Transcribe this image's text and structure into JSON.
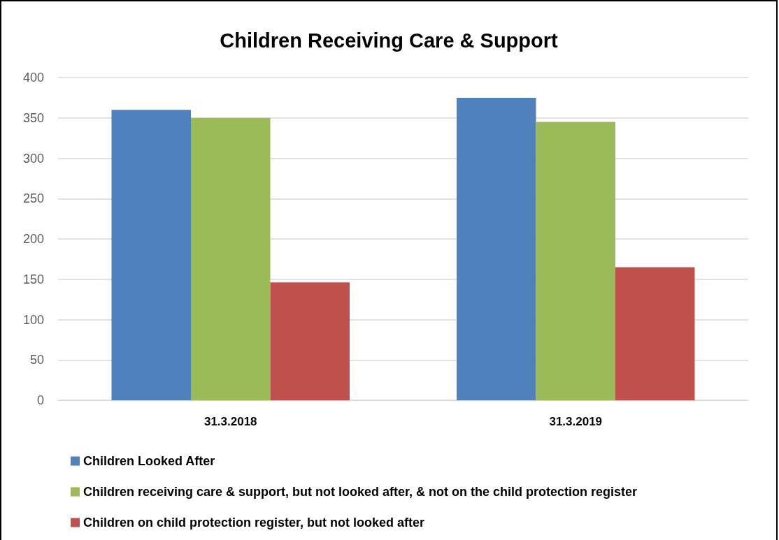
{
  "chart_data": {
    "type": "bar",
    "title": "Children Receiving Care & Support",
    "categories": [
      "31.3.2018",
      "31.3.2019"
    ],
    "series": [
      {
        "name": "Children Looked After",
        "color": "#4f81bd",
        "values": [
          360,
          375
        ]
      },
      {
        "name": "Children receiving care & support, but not looked after, & not on the child protection register",
        "color": "#9bbb59",
        "values": [
          350,
          345
        ]
      },
      {
        "name": "Children on child protection register, but not looked after",
        "color": "#c0504d",
        "values": [
          146,
          165
        ]
      }
    ],
    "ylim": [
      0,
      400
    ],
    "yticks": [
      0,
      50,
      100,
      150,
      200,
      250,
      300,
      350,
      400
    ],
    "grid": "y",
    "legend": "bottom"
  }
}
